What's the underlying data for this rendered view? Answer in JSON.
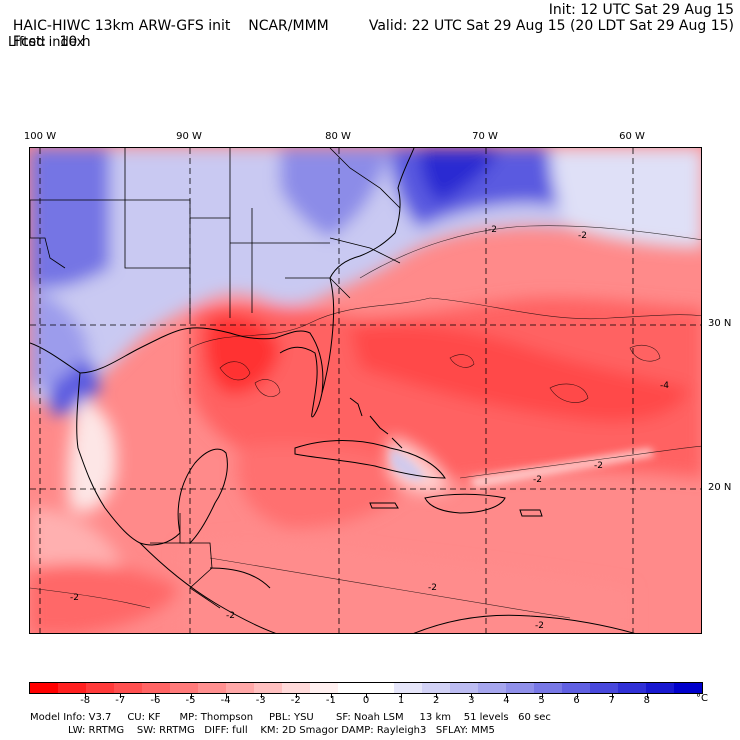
{
  "header": {
    "model": "HAIC-HIWC 13km ARW-GFS init",
    "org": "NCAR/MMM",
    "init": "Init: 12 UTC Sat 29 Aug 15",
    "fcst_label": "Fcst:",
    "fcst_value": "10 h",
    "valid": "Valid: 22 UTC Sat 29 Aug 15 (20 LDT Sat 29 Aug 15)",
    "field": "Lifted index"
  },
  "map": {
    "lon_labels": [
      "100 W",
      "90 W",
      "80 W",
      "70 W",
      "60 W"
    ],
    "lat_labels": [
      "30 N",
      "20 N"
    ],
    "contour_labels": [
      "-2",
      "-2",
      "-2",
      "-2",
      "-4",
      "-2",
      "-2",
      "-2",
      "-2"
    ]
  },
  "colorbar": {
    "tick_labels": [
      "-8",
      "-7",
      "-6",
      "-5",
      "-4",
      "-3",
      "-2",
      "-1",
      "0",
      "1",
      "2",
      "3",
      "4",
      "5",
      "6",
      "7",
      "8"
    ],
    "unit": "°C",
    "colors": [
      "#ff0000",
      "#ff2020",
      "#ff3a3a",
      "#ff5050",
      "#ff6464",
      "#ff7a7a",
      "#ff9090",
      "#ffa8a8",
      "#ffc0c0",
      "#ffdada",
      "#fff0f0",
      "#ffffff",
      "#ffffff",
      "#e6e6fa",
      "#d2d2f6",
      "#bcbcf2",
      "#a6a6ee",
      "#9090ea",
      "#7878e6",
      "#6060e2",
      "#4848dc",
      "#3030d6",
      "#1818d0",
      "#0000cc"
    ]
  },
  "footer": {
    "line1": "Model Info: V3.7     CU: KF      MP: Thompson     PBL: YSU       SF: Noah LSM     13 km    51 levels   60 sec",
    "line2": "LW: RRTMG    SW: RRTMG   DIFF: full    KM: 2D Smagor DAMP: Rayleigh3   SFLAY: MM5"
  }
}
